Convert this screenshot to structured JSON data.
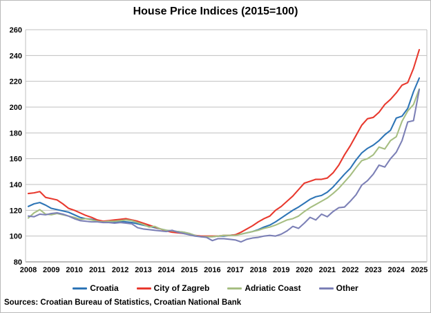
{
  "chart": {
    "title": "House Price Indices (2015=100)",
    "source": "Sources: Croatian Bureau of Statistics, Croatian National Bank"
  },
  "chart_data": {
    "type": "line",
    "title": "House Price Indices (2015=100)",
    "xlabel": "",
    "ylabel": "",
    "ylim": [
      80,
      260
    ],
    "ytick_step": 20,
    "grid": "horizontal",
    "gridline_color": "#bfbfbf",
    "axis_color": "#a6a6a6",
    "legend_position": "bottom",
    "x_frequency": "quarterly",
    "x_start": "2008Q1",
    "x_end": "2025Q1",
    "year_labels": [
      "2008",
      "2009",
      "2010",
      "2011",
      "2012",
      "2013",
      "2014",
      "2015",
      "2016",
      "2017",
      "2018",
      "2019",
      "2020",
      "2021",
      "2022",
      "2023",
      "2024",
      "2025"
    ],
    "series": [
      {
        "name": "Croatia",
        "color": "#2E75B6",
        "values": [
          123,
          125,
          126,
          124,
          121.5,
          120.5,
          119.5,
          118.5,
          116.5,
          114.5,
          113.5,
          113,
          112,
          111.5,
          111.5,
          111,
          111.5,
          111,
          110.5,
          109.5,
          108.5,
          107.5,
          106.5,
          105.5,
          104.5,
          104,
          103.5,
          103,
          102,
          100.5,
          99.5,
          99.5,
          99.5,
          100,
          100,
          100.5,
          101,
          101.5,
          102.5,
          103.5,
          105,
          107,
          108.5,
          111,
          114,
          117,
          120,
          122.5,
          125.5,
          128.5,
          130.5,
          131.5,
          134,
          138,
          143,
          148,
          152.5,
          159,
          164.5,
          168,
          170.5,
          174,
          178.5,
          182,
          191.5,
          193,
          199,
          212,
          222.5
        ]
      },
      {
        "name": "City of Zagreb",
        "color": "#E8392E",
        "values": [
          133,
          133.5,
          134.5,
          130,
          129,
          128,
          125,
          121.5,
          120,
          118,
          116,
          114.5,
          112.5,
          111.5,
          112,
          112.5,
          113,
          113.5,
          112.5,
          111.5,
          110,
          108.5,
          107,
          105.5,
          104,
          103,
          102.5,
          102,
          101.5,
          100.5,
          100,
          100,
          100,
          100,
          100.5,
          100.5,
          101,
          103,
          105.5,
          108,
          111,
          113.5,
          115.5,
          120,
          123,
          127,
          131,
          136,
          141,
          142.5,
          144,
          144,
          145,
          149,
          155,
          163,
          170,
          178,
          186,
          191,
          192,
          196,
          202,
          206,
          211,
          217,
          219,
          230,
          244.5
        ]
      },
      {
        "name": "Adriatic Coast",
        "color": "#A6BE82",
        "values": [
          114,
          118,
          120.5,
          117,
          116.5,
          117.5,
          116.5,
          115.5,
          114.5,
          113,
          113.5,
          112.5,
          111.5,
          111,
          111.5,
          111.5,
          112,
          112.5,
          112,
          110.5,
          109,
          107,
          107.5,
          105.5,
          104.5,
          104,
          103.5,
          103,
          102,
          100.5,
          99.5,
          99.5,
          99.5,
          100,
          100.5,
          100.5,
          100.5,
          101.5,
          102.5,
          103.5,
          104.5,
          106,
          107,
          108.5,
          110.5,
          112.5,
          113.5,
          115.5,
          119,
          122,
          124.5,
          127,
          129.5,
          133,
          137,
          142,
          147,
          153,
          158.5,
          160,
          163,
          169,
          167.5,
          174,
          177,
          189,
          197,
          202,
          214
        ]
      },
      {
        "name": "Other",
        "color": "#7C80B6",
        "values": [
          115.5,
          115,
          117,
          116.5,
          117.5,
          118,
          117,
          115.5,
          113.5,
          112,
          111.5,
          111,
          111,
          110.5,
          110.5,
          110,
          110.5,
          110,
          109.5,
          106.5,
          105.5,
          105,
          104.5,
          104,
          103.5,
          104.5,
          103,
          102,
          101,
          100,
          99.5,
          99,
          96.5,
          98,
          98,
          97.5,
          97,
          95.5,
          97.5,
          98.5,
          99,
          100,
          100.5,
          100,
          101.5,
          104,
          107.5,
          106,
          110,
          114.5,
          112.5,
          117,
          115,
          119,
          122,
          122.5,
          127,
          132,
          139.5,
          143,
          148,
          155,
          153.5,
          160,
          165,
          174,
          188.5,
          189.5,
          213.5
        ]
      }
    ]
  }
}
